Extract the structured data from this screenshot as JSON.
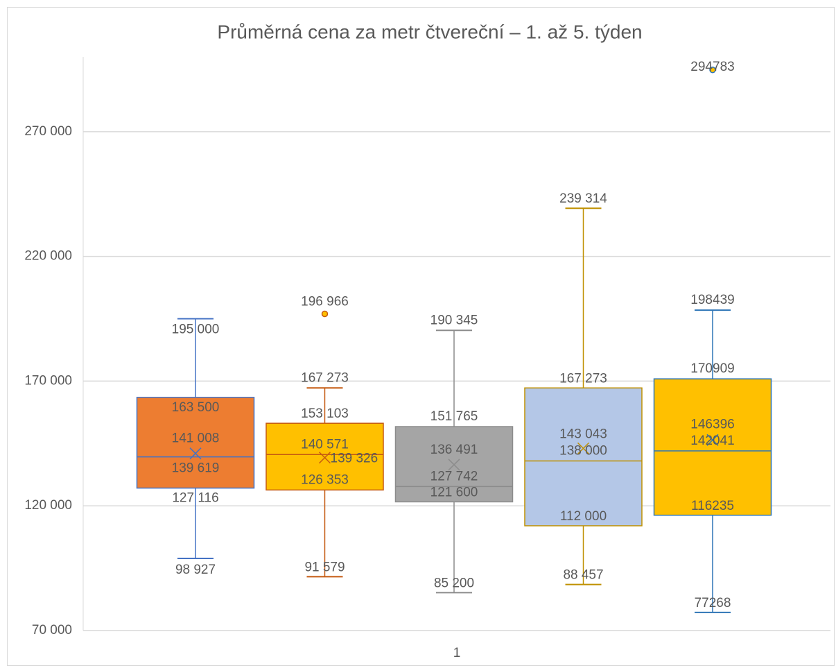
{
  "chart_data": {
    "type": "box",
    "title": "Průměrná cena za metr čtvereční –  1. až 5. týden",
    "categories": [
      "1"
    ],
    "ylim": [
      70000,
      300000
    ],
    "yticks": [
      {
        "value": 70000,
        "label": "70 000"
      },
      {
        "value": 120000,
        "label": "120 000"
      },
      {
        "value": 170000,
        "label": "170 000"
      },
      {
        "value": 220000,
        "label": "220 000"
      },
      {
        "value": 270000,
        "label": "270 000"
      }
    ],
    "grid": true,
    "series": [
      {
        "color": "#ED7D31",
        "border": "#4472C4",
        "min": 98927,
        "q1": 127116,
        "median": 139619,
        "q3": 163500,
        "max": 195000,
        "mean": 141008,
        "outliers": [],
        "value_labels": {
          "min": "98 927",
          "q1": "127 116",
          "median": "139 619",
          "q3": "163 500",
          "max": "195 000",
          "mean": "141 008",
          "outliers": []
        }
      },
      {
        "color": "#FFC000",
        "border": "#C55A11",
        "min": 91579,
        "q1": 126353,
        "median": 140571,
        "q3": 153103,
        "max": 167273,
        "mean": 139326,
        "outliers": [
          196966
        ],
        "value_labels": {
          "min": "91 579",
          "q1": "126 353",
          "median": "140 571",
          "q3": "153 103",
          "max": "167 273",
          "mean": "139 326",
          "outliers": [
            "196 966"
          ]
        }
      },
      {
        "color": "#A5A5A5",
        "border": "#8C8C8C",
        "min": 85200,
        "q1": 121600,
        "median": 127742,
        "q3": 151765,
        "max": 190345,
        "mean": 136491,
        "outliers": [],
        "value_labels": {
          "min": "85 200",
          "q1": "121 600",
          "median": "127 742",
          "q3": "151 765",
          "max": "190 345",
          "mean": "136 491",
          "outliers": []
        }
      },
      {
        "color": "#B4C7E7",
        "border": "#BF9000",
        "min": 88457,
        "q1": 112000,
        "median": 138000,
        "q3": 167273,
        "max": 239314,
        "mean": 143043,
        "outliers": [],
        "value_labels": {
          "min": "88 457",
          "q1": "112 000",
          "median": "138 000",
          "q3": "167 273",
          "max": "239 314",
          "mean": "143 043",
          "outliers": []
        }
      },
      {
        "color": "#FFC000",
        "border": "#2E75B6",
        "min": 77268,
        "q1": 116235,
        "median": 142041,
        "q3": 170909,
        "max": 198439,
        "mean": 146396,
        "outliers": [
          294783
        ]
      }
    ]
  }
}
